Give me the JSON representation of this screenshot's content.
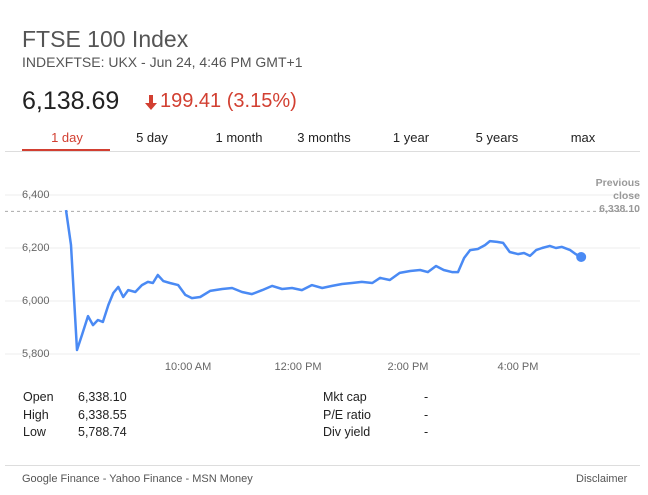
{
  "header": {
    "title": "FTSE 100 Index",
    "subtitle": "INDEXFTSE: UKX - Jun 24, 4:46 PM GMT+1",
    "price": "6,138.69",
    "change": "199.41 (3.15%)"
  },
  "tabs": [
    "1 day",
    "5 day",
    "1 month",
    "3 months",
    "1 year",
    "5 years",
    "max"
  ],
  "chart_data": {
    "type": "line",
    "x": [
      7.78,
      7.87,
      7.98,
      8.07,
      8.18,
      8.27,
      8.36,
      8.45,
      8.55,
      8.64,
      8.73,
      8.82,
      8.91,
      9.04,
      9.16,
      9.27,
      9.36,
      9.45,
      9.55,
      9.67,
      9.82,
      9.95,
      10.07,
      10.22,
      10.4,
      10.62,
      10.8,
      10.98,
      11.16,
      11.35,
      11.53,
      11.71,
      11.89,
      12.07,
      12.25,
      12.44,
      12.62,
      12.8,
      12.98,
      13.16,
      13.35,
      13.49,
      13.67,
      13.85,
      14.04,
      14.22,
      14.36,
      14.51,
      14.65,
      14.8,
      14.91,
      15.02,
      15.13,
      15.27,
      15.4,
      15.49,
      15.62,
      15.73,
      15.85,
      16.0,
      16.11,
      16.22,
      16.33,
      16.44,
      16.58,
      16.69,
      16.8,
      16.95,
      17.05,
      17.15
    ],
    "series": [
      {
        "name": "FTSE 100 Index",
        "color": "#4a8af4",
        "values": [
          6343,
          6211,
          5815,
          5872,
          5943,
          5909,
          5928,
          5921,
          5985,
          6030,
          6053,
          6015,
          6041,
          6034,
          6060,
          6072,
          6068,
          6098,
          6075,
          6068,
          6060,
          6023,
          6011,
          6015,
          6038,
          6045,
          6049,
          6034,
          6026,
          6041,
          6057,
          6045,
          6049,
          6041,
          6060,
          6049,
          6057,
          6064,
          6068,
          6072,
          6068,
          6087,
          6079,
          6106,
          6113,
          6117,
          6109,
          6132,
          6117,
          6109,
          6109,
          6162,
          6192,
          6196,
          6211,
          6226,
          6223,
          6219,
          6185,
          6177,
          6181,
          6170,
          6192,
          6200,
          6208,
          6200,
          6204,
          6192,
          6177,
          6166
        ]
      }
    ],
    "xlim": [
      6.67,
      18.22
    ],
    "xticks": [
      {
        "value": 10,
        "label": "10:00 AM"
      },
      {
        "value": 12,
        "label": "12:00 PM"
      },
      {
        "value": 14,
        "label": "2:00 PM"
      },
      {
        "value": 16,
        "label": "4:00 PM"
      }
    ],
    "ylim": [
      5730,
      6470
    ],
    "yticks": [
      {
        "value": 5800,
        "label": "5,800"
      },
      {
        "value": 6000,
        "label": "6,000"
      },
      {
        "value": 6200,
        "label": "6,200"
      },
      {
        "value": 6400,
        "label": "6,400"
      }
    ],
    "grid": true,
    "previous_close": {
      "title": "Previous close",
      "value": 6338.1,
      "label": "6,338.10"
    }
  },
  "stats": {
    "left": [
      [
        "Open",
        "6,338.10"
      ],
      [
        "High",
        "6,338.55"
      ],
      [
        "Low",
        "5,788.74"
      ]
    ],
    "right": [
      [
        "Mkt cap",
        "-"
      ],
      [
        "P/E ratio",
        "-"
      ],
      [
        "Div yield",
        "-"
      ]
    ]
  },
  "footer": {
    "sources": "Google Finance - Yahoo Finance - MSN Money",
    "disclaimer": "Disclaimer"
  }
}
